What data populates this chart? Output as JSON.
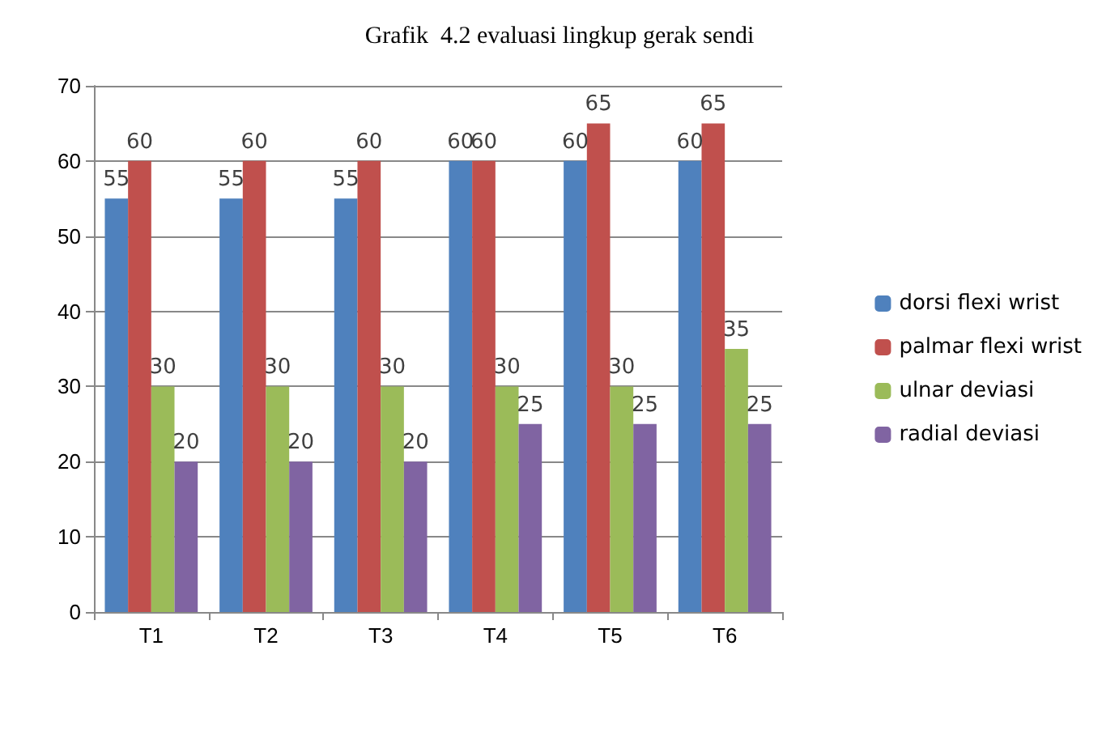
{
  "chart_data": {
    "type": "bar",
    "title": "Grafik  4.2 evaluasi lingkup gerak sendi",
    "categories": [
      "T1",
      "T2",
      "T3",
      "T4",
      "T5",
      "T6"
    ],
    "series": [
      {
        "name": "dorsi flexi wrist",
        "color": "#4f81bd",
        "values": [
          55,
          55,
          55,
          60,
          60,
          60
        ]
      },
      {
        "name": "palmar flexi wrist",
        "color": "#c0504d",
        "values": [
          60,
          60,
          60,
          60,
          65,
          65
        ]
      },
      {
        "name": "ulnar deviasi",
        "color": "#9bbb59",
        "values": [
          30,
          30,
          30,
          30,
          30,
          35
        ]
      },
      {
        "name": "radial deviasi",
        "color": "#8064a2",
        "values": [
          20,
          20,
          20,
          25,
          25,
          25
        ]
      }
    ],
    "ylim": [
      0,
      70
    ],
    "yticks": [
      0,
      10,
      20,
      30,
      40,
      50,
      60,
      70
    ],
    "grid": "y",
    "legend": "right",
    "data_labels": true
  }
}
